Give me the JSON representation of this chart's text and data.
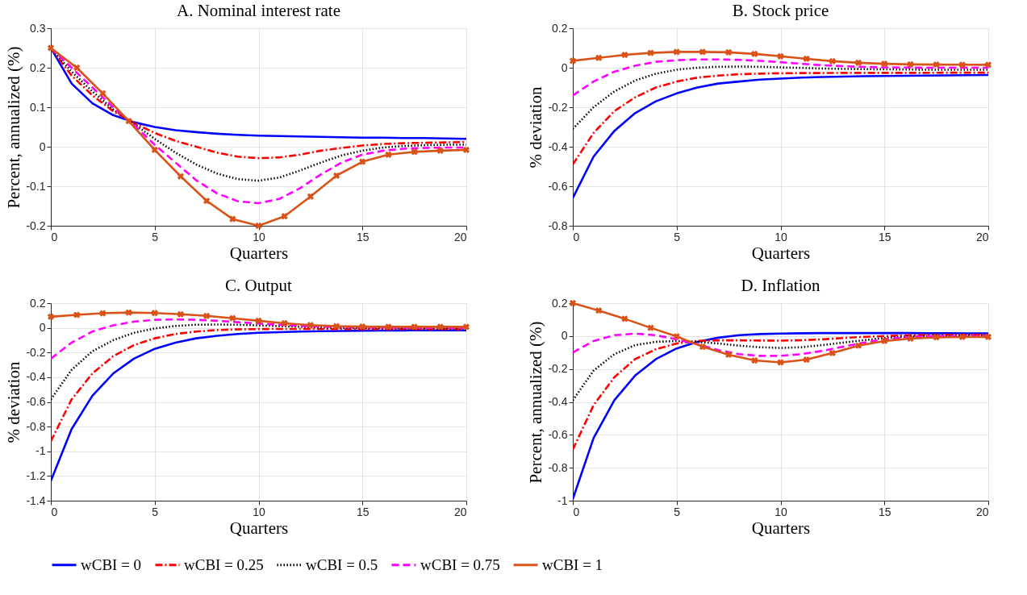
{
  "chart_data": [
    {
      "type": "line",
      "title": "A. Nominal interest rate",
      "xlabel": "Quarters",
      "ylabel": "Percent, annualized (%)",
      "xlim": [
        0,
        20
      ],
      "xticks": [
        0,
        5,
        10,
        15,
        20
      ],
      "ylim": [
        -0.2,
        0.3
      ],
      "yticks": [
        -0.2,
        -0.1,
        0,
        0.1,
        0.2,
        0.3
      ],
      "grid": true,
      "legend": "bottom",
      "x": [
        0,
        1,
        2,
        3,
        4,
        5,
        6,
        7,
        8,
        9,
        10,
        11,
        12,
        13,
        14,
        15,
        16,
        17,
        18,
        19,
        20
      ],
      "series": [
        {
          "name": "wCBI = 0",
          "color": "#0000ff",
          "line_style": "solid",
          "values": [
            0.25,
            0.16,
            0.11,
            0.08,
            0.062,
            0.05,
            0.042,
            0.037,
            0.033,
            0.03,
            0.028,
            0.027,
            0.026,
            0.025,
            0.024,
            0.023,
            0.023,
            0.022,
            0.022,
            0.021,
            0.02
          ]
        },
        {
          "name": "wCBI = 0.25",
          "color": "#ff0000",
          "line_style": "dashdot",
          "values": [
            0.25,
            0.18,
            0.13,
            0.09,
            0.06,
            0.035,
            0.015,
            0,
            -0.015,
            -0.025,
            -0.029,
            -0.027,
            -0.02,
            -0.01,
            -0.003,
            0.003,
            0.007,
            0.009,
            0.01,
            0.011,
            0.012
          ]
        },
        {
          "name": "wCBI = 0.5",
          "color": "#000000",
          "line_style": "dotted",
          "values": [
            0.25,
            0.19,
            0.14,
            0.095,
            0.058,
            0.02,
            -0.015,
            -0.045,
            -0.068,
            -0.082,
            -0.086,
            -0.078,
            -0.06,
            -0.04,
            -0.022,
            -0.01,
            -0.002,
            0.002,
            0.004,
            0.005,
            0.005
          ]
        },
        {
          "name": "wCBI = 0.75",
          "color": "#ff00ff",
          "line_style": "dashed",
          "values": [
            0.25,
            0.2,
            0.15,
            0.1,
            0.055,
            0.005,
            -0.04,
            -0.085,
            -0.118,
            -0.138,
            -0.143,
            -0.132,
            -0.105,
            -0.07,
            -0.04,
            -0.02,
            -0.01,
            -0.005,
            -0.003,
            -0.002,
            -0.002
          ]
        },
        {
          "name": "wCBI = 1",
          "color": "#d95319",
          "line_style": "solid",
          "marker": "cross",
          "x": [
            0,
            1.25,
            2.5,
            3.75,
            5,
            6.25,
            7.5,
            8.75,
            10,
            11.25,
            12.5,
            13.75,
            15,
            16.25,
            17.5,
            18.75,
            20
          ],
          "values": [
            0.25,
            0.2,
            0.135,
            0.065,
            -0.008,
            -0.075,
            -0.137,
            -0.183,
            -0.2,
            -0.176,
            -0.126,
            -0.073,
            -0.038,
            -0.02,
            -0.013,
            -0.01,
            -0.008
          ]
        }
      ]
    },
    {
      "type": "line",
      "title": "B. Stock price",
      "xlabel": "Quarters",
      "ylabel": "% deviation",
      "xlim": [
        0,
        20
      ],
      "xticks": [
        0,
        5,
        10,
        15,
        20
      ],
      "ylim": [
        -0.8,
        0.2
      ],
      "yticks": [
        -0.8,
        -0.6,
        -0.4,
        -0.2,
        0,
        0.2
      ],
      "grid": true,
      "legend": "bottom",
      "x": [
        0,
        1,
        2,
        3,
        4,
        5,
        6,
        7,
        8,
        9,
        10,
        11,
        12,
        13,
        14,
        15,
        16,
        17,
        18,
        19,
        20
      ],
      "series": [
        {
          "name": "wCBI = 0",
          "color": "#0000ff",
          "line_style": "solid",
          "values": [
            -0.66,
            -0.45,
            -0.32,
            -0.23,
            -0.17,
            -0.13,
            -0.1,
            -0.08,
            -0.07,
            -0.06,
            -0.055,
            -0.05,
            -0.047,
            -0.045,
            -0.043,
            -0.042,
            -0.041,
            -0.04,
            -0.039,
            -0.038,
            -0.037
          ]
        },
        {
          "name": "wCBI = 0.25",
          "color": "#ff0000",
          "line_style": "dashdot",
          "values": [
            -0.49,
            -0.33,
            -0.22,
            -0.15,
            -0.1,
            -0.07,
            -0.05,
            -0.04,
            -0.033,
            -0.03,
            -0.028,
            -0.027,
            -0.027,
            -0.026,
            -0.026,
            -0.026,
            -0.026,
            -0.026,
            -0.025,
            -0.025,
            -0.025
          ]
        },
        {
          "name": "wCBI = 0.5",
          "color": "#000000",
          "line_style": "dotted",
          "values": [
            -0.31,
            -0.2,
            -0.12,
            -0.065,
            -0.03,
            -0.01,
            0,
            0.005,
            0.006,
            0.005,
            0.002,
            -0.001,
            -0.004,
            -0.006,
            -0.007,
            -0.008,
            -0.009,
            -0.01,
            -0.01,
            -0.01,
            -0.01
          ]
        },
        {
          "name": "wCBI = 0.75",
          "color": "#ff00ff",
          "line_style": "dashed",
          "values": [
            -0.14,
            -0.07,
            -0.02,
            0.01,
            0.03,
            0.038,
            0.042,
            0.042,
            0.04,
            0.035,
            0.028,
            0.02,
            0.013,
            0.008,
            0.004,
            0.002,
            0.001,
            0,
            0,
            0,
            0
          ]
        },
        {
          "name": "wCBI = 1",
          "color": "#d95319",
          "line_style": "solid",
          "marker": "cross",
          "x": [
            0,
            1.25,
            2.5,
            3.75,
            5,
            6.25,
            7.5,
            8.75,
            10,
            11.25,
            12.5,
            13.75,
            15,
            16.25,
            17.5,
            18.75,
            20
          ],
          "values": [
            0.035,
            0.05,
            0.065,
            0.075,
            0.08,
            0.08,
            0.078,
            0.07,
            0.058,
            0.045,
            0.033,
            0.025,
            0.02,
            0.017,
            0.016,
            0.015,
            0.015
          ]
        }
      ]
    },
    {
      "type": "line",
      "title": "C. Output",
      "xlabel": "Quarters",
      "ylabel": "% deviation",
      "xlim": [
        0,
        20
      ],
      "xticks": [
        0,
        5,
        10,
        15,
        20
      ],
      "ylim": [
        -1.4,
        0.2
      ],
      "yticks": [
        -1.4,
        -1.2,
        -1,
        -0.8,
        -0.6,
        -0.4,
        -0.2,
        0,
        0.2
      ],
      "grid": true,
      "legend": "bottom",
      "x": [
        0,
        1,
        2,
        3,
        4,
        5,
        6,
        7,
        8,
        9,
        10,
        11,
        12,
        13,
        14,
        15,
        16,
        17,
        18,
        19,
        20
      ],
      "series": [
        {
          "name": "wCBI = 0",
          "color": "#0000ff",
          "line_style": "solid",
          "values": [
            -1.24,
            -0.82,
            -0.55,
            -0.37,
            -0.25,
            -0.17,
            -0.12,
            -0.085,
            -0.065,
            -0.05,
            -0.04,
            -0.035,
            -0.03,
            -0.027,
            -0.025,
            -0.023,
            -0.022,
            -0.021,
            -0.02,
            -0.02,
            -0.02
          ]
        },
        {
          "name": "wCBI = 0.25",
          "color": "#ff0000",
          "line_style": "dashdot",
          "values": [
            -0.92,
            -0.58,
            -0.37,
            -0.23,
            -0.14,
            -0.085,
            -0.05,
            -0.03,
            -0.018,
            -0.012,
            -0.01,
            -0.009,
            -0.009,
            -0.009,
            -0.009,
            -0.01,
            -0.01,
            -0.01,
            -0.01,
            -0.01,
            -0.01
          ]
        },
        {
          "name": "wCBI = 0.5",
          "color": "#000000",
          "line_style": "dotted",
          "values": [
            -0.58,
            -0.34,
            -0.19,
            -0.1,
            -0.04,
            -0.005,
            0.015,
            0.025,
            0.027,
            0.025,
            0.02,
            0.014,
            0.008,
            0.003,
            0,
            -0.002,
            -0.003,
            -0.004,
            -0.004,
            -0.004,
            -0.004
          ]
        },
        {
          "name": "wCBI = 0.75",
          "color": "#ff00ff",
          "line_style": "dashed",
          "values": [
            -0.25,
            -0.12,
            -0.03,
            0.02,
            0.05,
            0.065,
            0.068,
            0.065,
            0.057,
            0.046,
            0.035,
            0.025,
            0.016,
            0.01,
            0.005,
            0.003,
            0.002,
            0.001,
            0,
            0,
            0
          ]
        },
        {
          "name": "wCBI = 1",
          "color": "#d95319",
          "line_style": "solid",
          "marker": "cross",
          "x": [
            0,
            1.25,
            2.5,
            3.75,
            5,
            6.25,
            7.5,
            8.75,
            10,
            11.25,
            12.5,
            13.75,
            15,
            16.25,
            17.5,
            18.75,
            20
          ],
          "values": [
            0.09,
            0.105,
            0.118,
            0.124,
            0.12,
            0.11,
            0.097,
            0.078,
            0.057,
            0.037,
            0.022,
            0.013,
            0.01,
            0.008,
            0.008,
            0.008,
            0.008
          ]
        }
      ]
    },
    {
      "type": "line",
      "title": "D. Inflation",
      "xlabel": "Quarters",
      "ylabel": "Percent, annualized (%)",
      "xlim": [
        0,
        20
      ],
      "xticks": [
        0,
        5,
        10,
        15,
        20
      ],
      "ylim": [
        -1,
        0.2
      ],
      "yticks": [
        -1,
        -0.8,
        -0.6,
        -0.4,
        -0.2,
        0,
        0.2
      ],
      "grid": true,
      "legend": "bottom",
      "x": [
        0,
        1,
        2,
        3,
        4,
        5,
        6,
        7,
        8,
        9,
        10,
        11,
        12,
        13,
        14,
        15,
        16,
        17,
        18,
        19,
        20
      ],
      "series": [
        {
          "name": "wCBI = 0",
          "color": "#0000ff",
          "line_style": "solid",
          "values": [
            -0.99,
            -0.62,
            -0.39,
            -0.24,
            -0.14,
            -0.075,
            -0.035,
            -0.01,
            0.005,
            0.012,
            0.015,
            0.017,
            0.018,
            0.018,
            0.018,
            0.018,
            0.018,
            0.017,
            0.017,
            0.016,
            0.016
          ]
        },
        {
          "name": "wCBI = 0.25",
          "color": "#ff0000",
          "line_style": "dashdot",
          "values": [
            -0.69,
            -0.42,
            -0.25,
            -0.14,
            -0.08,
            -0.045,
            -0.03,
            -0.026,
            -0.026,
            -0.027,
            -0.028,
            -0.025,
            -0.02,
            -0.012,
            -0.005,
            0,
            0.004,
            0.006,
            0.007,
            0.008,
            0.008
          ]
        },
        {
          "name": "wCBI = 0.5",
          "color": "#000000",
          "line_style": "dotted",
          "values": [
            -0.39,
            -0.21,
            -0.11,
            -0.055,
            -0.035,
            -0.03,
            -0.035,
            -0.045,
            -0.058,
            -0.068,
            -0.072,
            -0.068,
            -0.055,
            -0.04,
            -0.025,
            -0.012,
            -0.004,
            0,
            0.002,
            0.003,
            0.003
          ]
        },
        {
          "name": "wCBI = 0.75",
          "color": "#ff00ff",
          "line_style": "dashed",
          "values": [
            -0.1,
            -0.03,
            0.005,
            0.015,
            0.005,
            -0.02,
            -0.05,
            -0.085,
            -0.11,
            -0.12,
            -0.12,
            -0.11,
            -0.09,
            -0.065,
            -0.04,
            -0.02,
            -0.008,
            -0.002,
            0,
            0.001,
            0.001
          ]
        },
        {
          "name": "wCBI = 1",
          "color": "#d95319",
          "line_style": "solid",
          "marker": "cross",
          "x": [
            0,
            1.25,
            2.5,
            3.75,
            5,
            6.25,
            7.5,
            8.75,
            10,
            11.25,
            12.5,
            13.75,
            15,
            16.25,
            17.5,
            18.75,
            20
          ],
          "values": [
            0.2,
            0.155,
            0.105,
            0.05,
            -0.002,
            -0.065,
            -0.113,
            -0.148,
            -0.16,
            -0.143,
            -0.103,
            -0.058,
            -0.03,
            -0.015,
            -0.008,
            -0.005,
            -0.005
          ]
        }
      ]
    }
  ]
}
